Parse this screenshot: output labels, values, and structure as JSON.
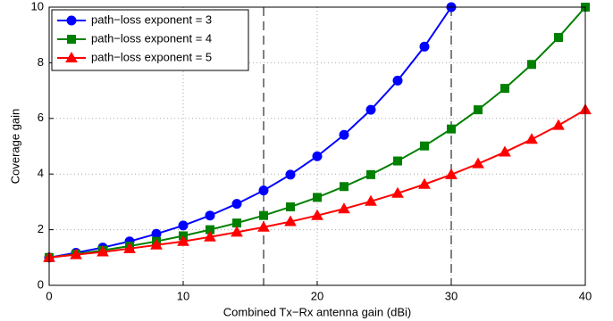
{
  "chart_data": {
    "type": "line",
    "xlabel": "Combined Tx−Rx antenna gain (dBi)",
    "ylabel": "Coverage gain",
    "xlim": [
      0,
      40
    ],
    "xticks": [
      0,
      10,
      20,
      30,
      40
    ],
    "ylim": [
      0,
      10
    ],
    "yticks": [
      0,
      2,
      4,
      6,
      8,
      10
    ],
    "grid": true,
    "legend": "upper left",
    "vlines": [
      16,
      30
    ],
    "series": [
      {
        "name": "path−loss exponent = 3",
        "color": "#0000ff",
        "marker": "circle",
        "x": [
          0,
          2,
          4,
          6,
          8,
          10,
          12,
          14,
          16,
          18,
          20,
          22,
          24,
          26,
          28,
          30
        ],
        "values": [
          1,
          1.17,
          1.36,
          1.58,
          1.85,
          2.15,
          2.51,
          2.93,
          3.41,
          3.98,
          4.64,
          5.41,
          6.31,
          7.36,
          8.58,
          10
        ]
      },
      {
        "name": "path−loss exponent = 4",
        "color": "#008000",
        "marker": "square",
        "x": [
          0,
          2,
          4,
          6,
          8,
          10,
          12,
          14,
          16,
          18,
          20,
          22,
          24,
          26,
          28,
          30,
          32,
          34,
          36,
          38,
          40
        ],
        "values": [
          1,
          1.12,
          1.26,
          1.41,
          1.58,
          1.78,
          2,
          2.24,
          2.51,
          2.82,
          3.16,
          3.55,
          3.98,
          4.47,
          5.01,
          5.62,
          6.31,
          7.08,
          7.94,
          8.91,
          10
        ]
      },
      {
        "name": "path−loss exponent = 5",
        "color": "#ff0000",
        "marker": "triangle",
        "x": [
          0,
          2,
          4,
          6,
          8,
          10,
          12,
          14,
          16,
          18,
          20,
          22,
          24,
          26,
          28,
          30,
          32,
          34,
          36,
          38,
          40
        ],
        "values": [
          1,
          1.1,
          1.2,
          1.32,
          1.45,
          1.58,
          1.74,
          1.91,
          2.09,
          2.29,
          2.51,
          2.75,
          3.02,
          3.31,
          3.63,
          3.98,
          4.37,
          4.79,
          5.25,
          5.75,
          6.31
        ]
      }
    ]
  }
}
